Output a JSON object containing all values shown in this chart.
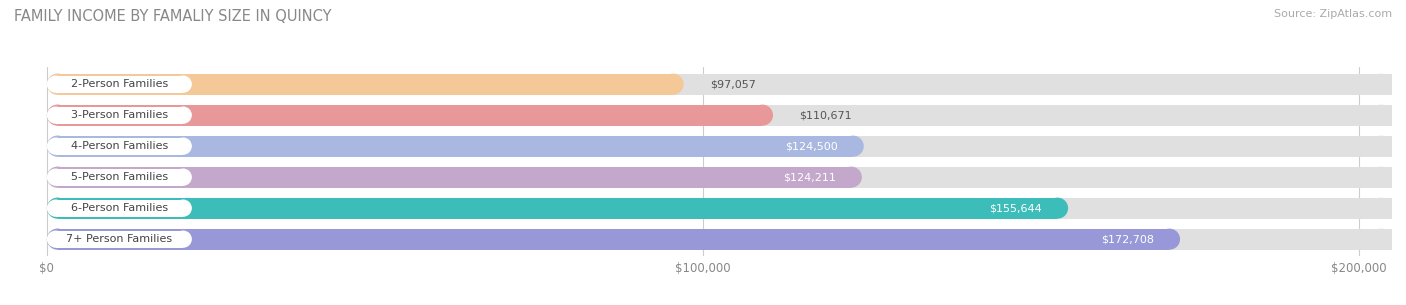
{
  "title": "FAMILY INCOME BY FAMALIY SIZE IN QUINCY",
  "source": "Source: ZipAtlas.com",
  "categories": [
    "2-Person Families",
    "3-Person Families",
    "4-Person Families",
    "5-Person Families",
    "6-Person Families",
    "7+ Person Families"
  ],
  "values": [
    97057,
    110671,
    124500,
    124211,
    155644,
    172708
  ],
  "labels": [
    "$97,057",
    "$110,671",
    "$124,500",
    "$124,211",
    "$155,644",
    "$172,708"
  ],
  "bar_colors": [
    "#f5c898",
    "#e89898",
    "#a8b8e0",
    "#c4a8cc",
    "#3dbdba",
    "#9898d8"
  ],
  "bar_bg_color": "#e0e0e0",
  "xmax": 200000,
  "xticks": [
    0,
    100000,
    200000
  ],
  "xticklabels": [
    "$0",
    "$100,000",
    "$200,000"
  ],
  "title_fontsize": 10.5,
  "source_fontsize": 8,
  "label_fontsize": 8,
  "category_fontsize": 8,
  "bg_color": "#ffffff",
  "label_colors": [
    "#555555",
    "#555555",
    "#ffffff",
    "#ffffff",
    "#ffffff",
    "#ffffff"
  ],
  "label_inside": [
    false,
    false,
    true,
    true,
    true,
    true
  ]
}
